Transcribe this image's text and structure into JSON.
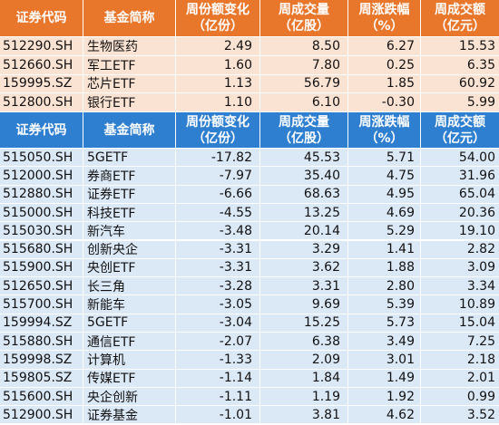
{
  "table1": {
    "headers": [
      {
        "line1": "证券代码",
        "line2": ""
      },
      {
        "line1": "基金简称",
        "line2": ""
      },
      {
        "line1": "周份额变化",
        "line2": "（亿份）"
      },
      {
        "line1": "周成交量",
        "line2": "（亿股）"
      },
      {
        "line1": "周涨跌幅",
        "line2": "（%）"
      },
      {
        "line1": "周成交额",
        "line2": "（亿元）"
      }
    ],
    "rows": [
      [
        "512290.SH",
        "生物医药",
        "2.49",
        "8.50",
        "6.27",
        "15.53"
      ],
      [
        "512660.SH",
        "军工ETF",
        "1.60",
        "7.80",
        "0.25",
        "6.35"
      ],
      [
        "159995.SZ",
        "芯片ETF",
        "1.13",
        "56.79",
        "1.85",
        "60.92"
      ],
      [
        "512800.SH",
        "银行ETF",
        "1.10",
        "6.10",
        "-0.30",
        "5.99"
      ]
    ]
  },
  "table2": {
    "headers": [
      {
        "line1": "证券代码",
        "line2": ""
      },
      {
        "line1": "基金简称",
        "line2": ""
      },
      {
        "line1": "周份额变化",
        "line2": "（亿份）"
      },
      {
        "line1": "周成交量",
        "line2": "（亿股）"
      },
      {
        "line1": "周涨跌幅",
        "line2": "（%）"
      },
      {
        "line1": "周成交额",
        "line2": "（亿元）"
      }
    ],
    "rows": [
      [
        "515050.SH",
        "5GETF",
        "-17.82",
        "45.53",
        "5.71",
        "54.00"
      ],
      [
        "512000.SH",
        "券商ETF",
        "-7.97",
        "35.40",
        "4.75",
        "31.96"
      ],
      [
        "512880.SH",
        "证券ETF",
        "-6.66",
        "68.63",
        "4.95",
        "65.04"
      ],
      [
        "515000.SH",
        "科技ETF",
        "-4.55",
        "13.25",
        "4.69",
        "20.36"
      ],
      [
        "515030.SH",
        "新汽车",
        "-3.48",
        "20.14",
        "5.29",
        "19.10"
      ],
      [
        "515680.SH",
        "创新央企",
        "-3.31",
        "3.29",
        "1.41",
        "2.82"
      ],
      [
        "515900.SH",
        "央创ETF",
        "-3.31",
        "3.62",
        "1.88",
        "3.09"
      ],
      [
        "512650.SH",
        "长三角",
        "-3.28",
        "3.31",
        "2.80",
        "3.34"
      ],
      [
        "515700.SH",
        "新能车",
        "-3.05",
        "9.69",
        "5.39",
        "10.89"
      ],
      [
        "159994.SZ",
        "5GETF",
        "-3.04",
        "15.25",
        "5.73",
        "15.04"
      ],
      [
        "515880.SH",
        "通信ETF",
        "-2.07",
        "6.38",
        "3.49",
        "7.25"
      ],
      [
        "159998.SZ",
        "计算机",
        "-1.33",
        "2.09",
        "3.01",
        "2.18"
      ],
      [
        "159805.SZ",
        "传媒ETF",
        "-1.14",
        "1.84",
        "1.49",
        "2.01"
      ],
      [
        "515600.SH",
        "央企创新",
        "-1.11",
        "1.19",
        "1.92",
        "0.99"
      ],
      [
        "512900.SH",
        "证券基金",
        "-1.01",
        "3.81",
        "4.62",
        "3.52"
      ]
    ]
  },
  "colors": {
    "orange_header": "#e8762b",
    "orange_row": "#fbe3d3",
    "blue_header": "#2f7fd0",
    "blue_row": "#dbe8f6"
  }
}
